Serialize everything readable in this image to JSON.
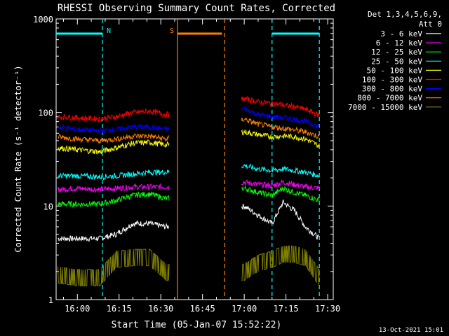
{
  "chart_data": {
    "type": "line",
    "title": "RHESSI Observing Summary Count Rates, Corrected",
    "xlabel": "Start Time (05-Jan-07 15:52:22)",
    "ylabel": "Corrected Count Rate (s⁻¹ detector⁻¹)",
    "yscale": "log",
    "xlim": [
      "15:52:22",
      "17:32:00"
    ],
    "ylim": [
      1,
      1000
    ],
    "x_ticks": [
      "16:00",
      "16:15",
      "16:30",
      "16:45",
      "17:00",
      "17:15",
      "17:30"
    ],
    "y_ticks": [
      "1",
      "10",
      "100",
      "1000"
    ],
    "footer": "13-Oct-2021 15:01",
    "legend_header": [
      "Det 1,3,4,5,6,9,",
      "Att 0"
    ],
    "legend_position": "right",
    "markers": [
      {
        "label": "N",
        "color": "#00ffff",
        "bar_start": "15:52:22",
        "bar_end": "16:09:00",
        "lines": [
          "16:09:00"
        ]
      },
      {
        "label": "S",
        "color": "#ff8000",
        "bar_start": "16:36:00",
        "bar_end": "16:52:00",
        "lines": [
          "16:36:00",
          "16:53:00"
        ]
      },
      {
        "label": "",
        "color": "#00ffff",
        "bar_start": "17:10:00",
        "bar_end": "17:27:00",
        "lines": [
          "17:10:00",
          "17:27:00"
        ]
      }
    ],
    "gap": [
      "16:33:00",
      "16:59:00"
    ],
    "series": [
      {
        "name": "3 - 6 keV",
        "color": "#ffffff",
        "x": [
          "15:53",
          "16:00",
          "16:08",
          "16:14",
          "16:20",
          "16:26",
          "16:32",
          "17:00",
          "17:05",
          "17:10",
          "17:14",
          "17:18",
          "17:22",
          "17:27"
        ],
        "y": [
          4.5,
          4.5,
          4.5,
          5,
          6.5,
          6.5,
          6,
          10,
          8,
          6.5,
          11,
          9,
          6,
          4.5
        ]
      },
      {
        "name": "6 - 12 keV",
        "color": "#ff00ff",
        "x": [
          "15:53",
          "16:00",
          "16:08",
          "16:14",
          "16:20",
          "16:26",
          "16:32",
          "17:00",
          "17:05",
          "17:10",
          "17:14",
          "17:18",
          "17:22",
          "17:27"
        ],
        "y": [
          15,
          15.5,
          15,
          15.5,
          16,
          16,
          16,
          18,
          17,
          16.5,
          18,
          17,
          16,
          15.5
        ]
      },
      {
        "name": "12 - 25 keV",
        "color": "#00ff00",
        "x": [
          "15:53",
          "16:00",
          "16:08",
          "16:14",
          "16:20",
          "16:26",
          "16:32",
          "17:00",
          "17:05",
          "17:10",
          "17:14",
          "17:18",
          "17:22",
          "17:27"
        ],
        "y": [
          10.5,
          10.5,
          10.5,
          11.5,
          13,
          13.5,
          12,
          15.5,
          14,
          13,
          15.5,
          14,
          13,
          11.5
        ]
      },
      {
        "name": "25 - 50 keV",
        "color": "#00ffff",
        "x": [
          "15:53",
          "16:00",
          "16:08",
          "16:14",
          "16:20",
          "16:26",
          "16:32",
          "17:00",
          "17:05",
          "17:10",
          "17:14",
          "17:18",
          "17:22",
          "17:27"
        ],
        "y": [
          21,
          21,
          20.5,
          21,
          22,
          23,
          23,
          27,
          25,
          24,
          25,
          24,
          23,
          21
        ]
      },
      {
        "name": "50 - 100 keV",
        "color": "#ffff00",
        "x": [
          "15:53",
          "16:00",
          "16:08",
          "16:14",
          "16:20",
          "16:26",
          "16:32",
          "17:00",
          "17:05",
          "17:10",
          "17:14",
          "17:18",
          "17:22",
          "17:27"
        ],
        "y": [
          42,
          40,
          38,
          42,
          47,
          48,
          45,
          62,
          58,
          55,
          56,
          55,
          52,
          44
        ]
      },
      {
        "name": "100 - 300 keV",
        "color": "#ff0000",
        "x": [
          "15:53",
          "16:00",
          "16:08",
          "16:14",
          "16:20",
          "16:26",
          "16:32",
          "17:00",
          "17:05",
          "17:10",
          "17:14",
          "17:18",
          "17:22",
          "17:27"
        ],
        "y": [
          90,
          88,
          85,
          90,
          100,
          103,
          95,
          140,
          130,
          125,
          120,
          115,
          108,
          93
        ]
      },
      {
        "name": "300 - 800 keV",
        "color": "#0000ff",
        "x": [
          "15:53",
          "16:00",
          "16:08",
          "16:14",
          "16:20",
          "16:26",
          "16:32",
          "17:00",
          "17:05",
          "17:10",
          "17:14",
          "17:18",
          "17:22",
          "17:27"
        ],
        "y": [
          70,
          66,
          63,
          66,
          70,
          70,
          66,
          110,
          95,
          90,
          88,
          85,
          80,
          70
        ]
      },
      {
        "name": "800 - 7000 keV",
        "color": "#ff8000",
        "x": [
          "15:53",
          "16:00",
          "16:08",
          "16:14",
          "16:20",
          "16:26",
          "16:32",
          "17:00",
          "17:05",
          "17:10",
          "17:14",
          "17:18",
          "17:22",
          "17:27"
        ],
        "y": [
          55,
          52,
          50,
          52,
          56,
          56,
          52,
          85,
          75,
          70,
          68,
          65,
          62,
          55
        ]
      },
      {
        "name": "7000 - 15000 keV",
        "color": "#808000",
        "x": [
          "15:53",
          "16:00",
          "16:08",
          "16:14",
          "16:20",
          "16:26",
          "16:32",
          "17:00",
          "17:05",
          "17:10",
          "17:14",
          "17:18",
          "17:22",
          "17:27"
        ],
        "y": [
          1.5,
          1.4,
          1.4,
          2.2,
          2.3,
          2.3,
          1.6,
          1.6,
          2.0,
          2.2,
          2.5,
          2.5,
          2.3,
          1.4
        ]
      }
    ]
  }
}
